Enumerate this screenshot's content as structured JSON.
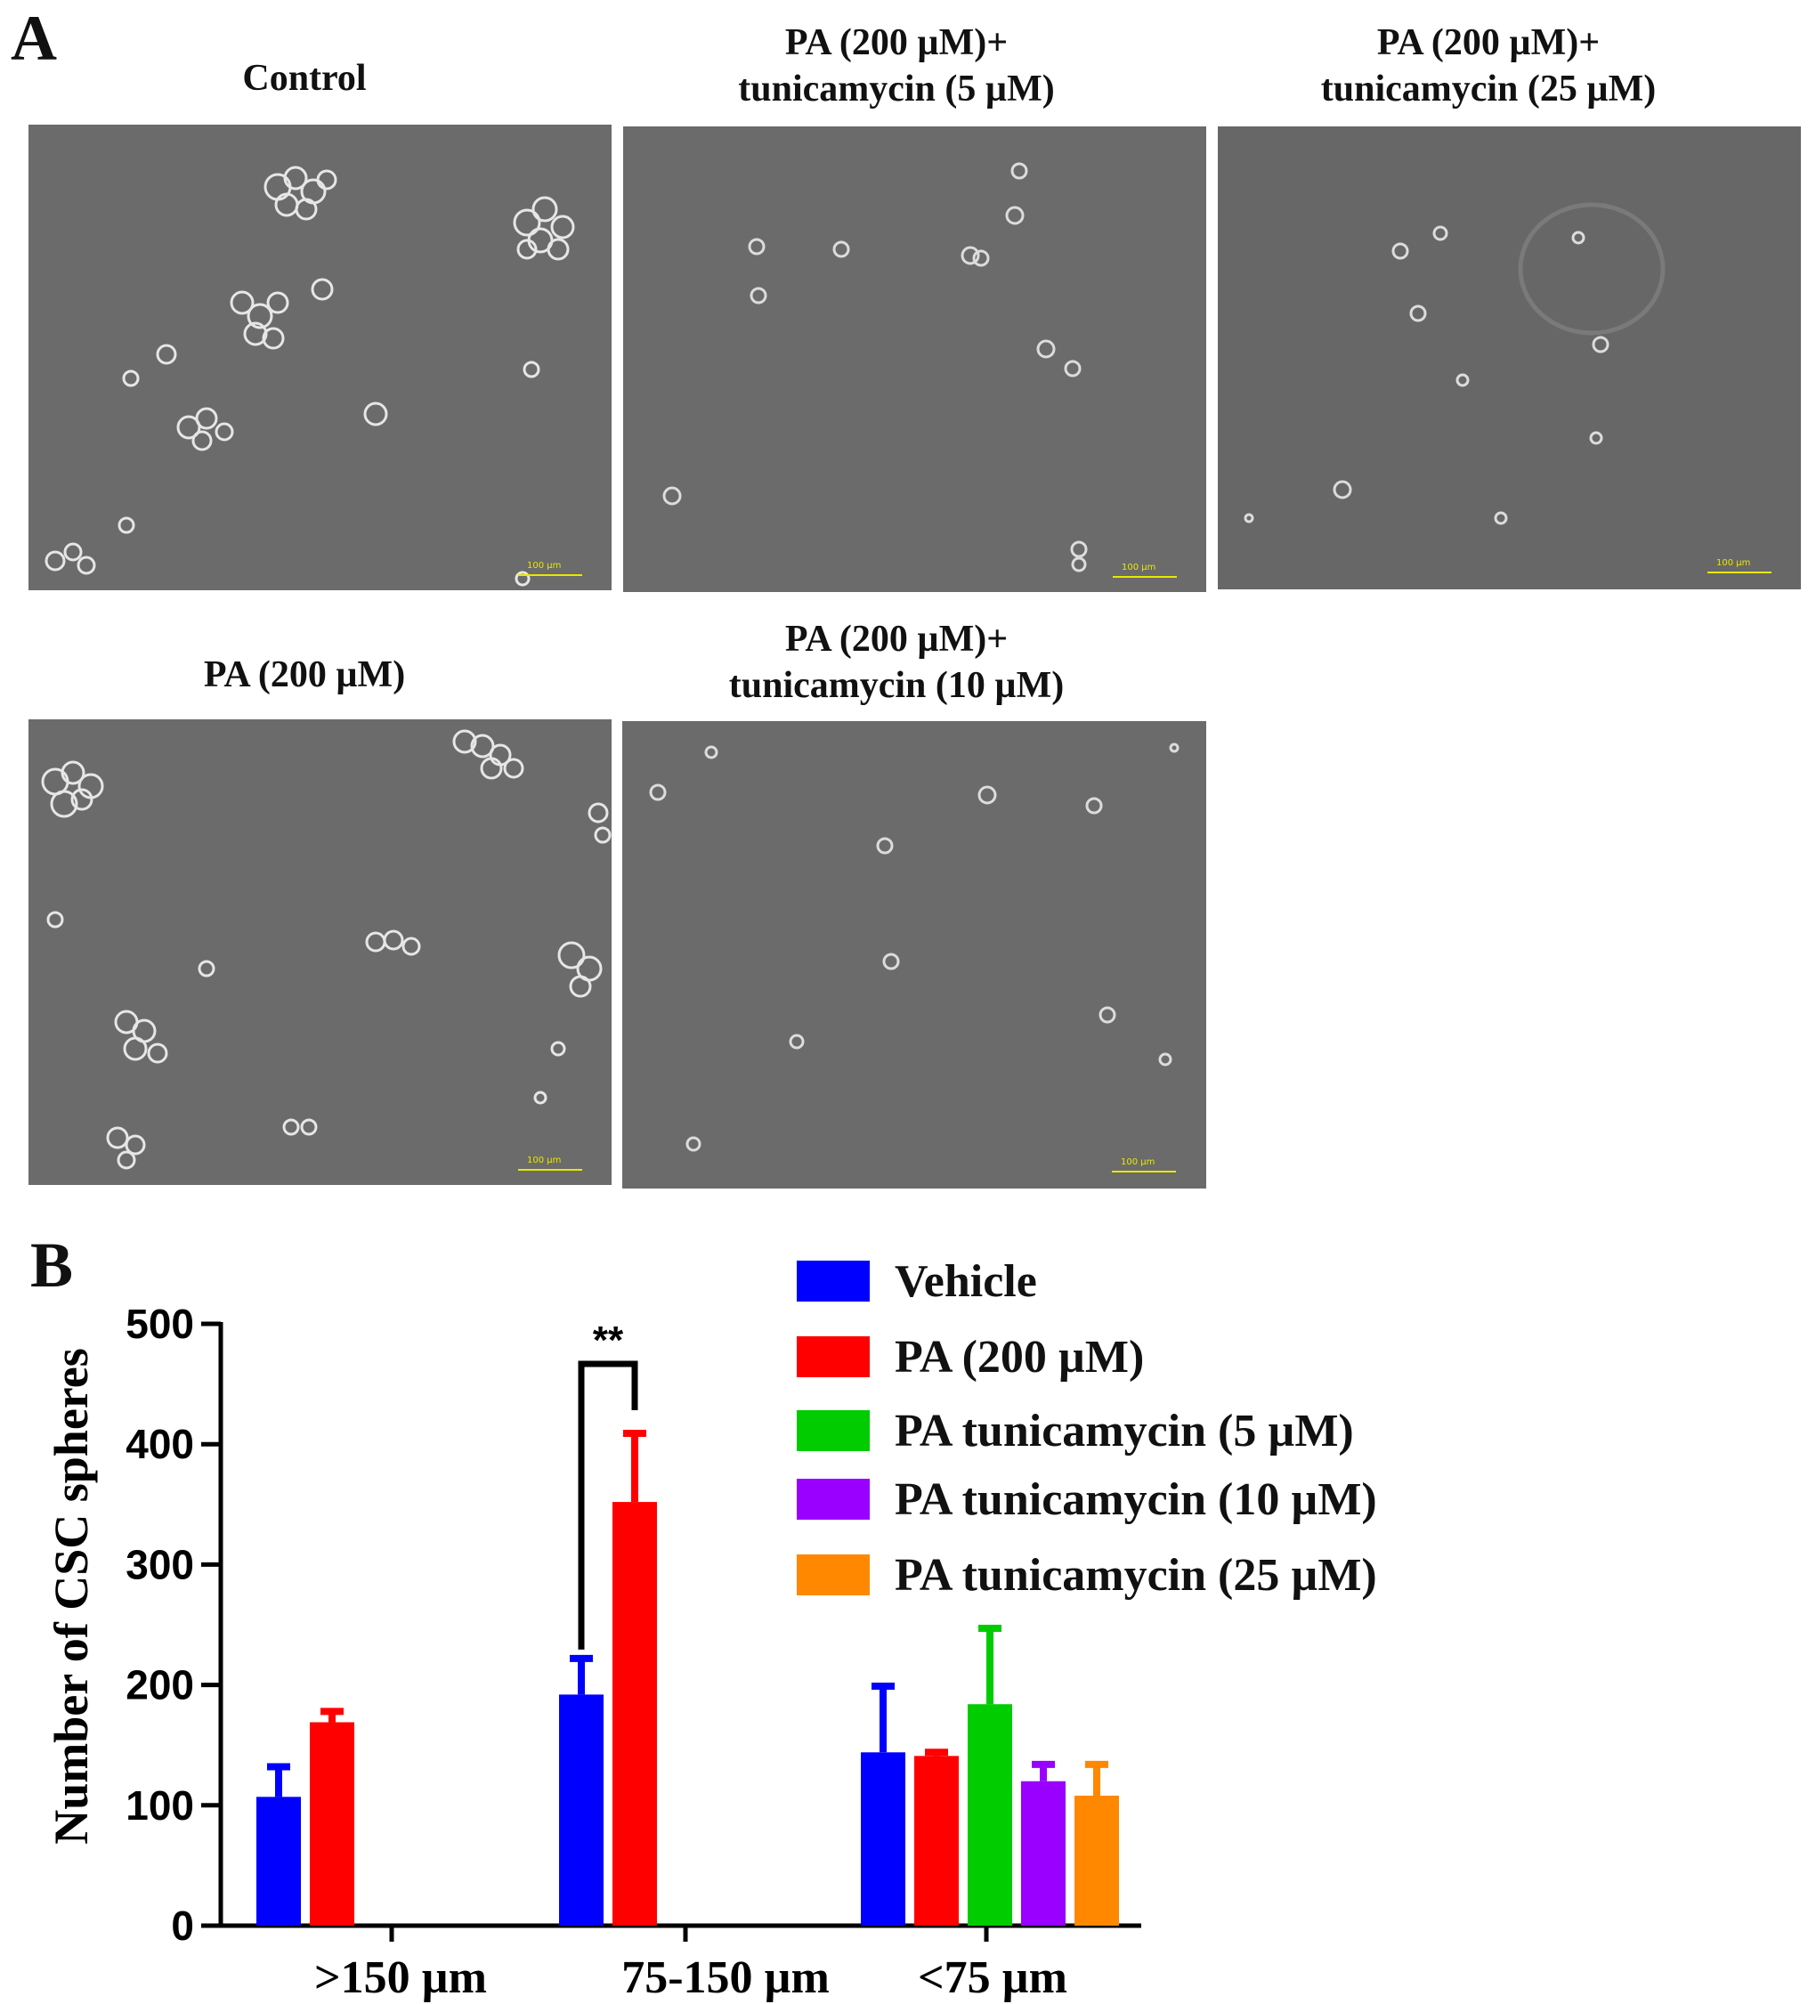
{
  "panel_a": {
    "letter": "A",
    "images": [
      {
        "title_lines": [
          "Control"
        ],
        "scale_label": "100 µm"
      },
      {
        "title_lines": [
          "PA (200 µM)+",
          "tunicamycin (5 µM)"
        ],
        "scale_label": "100 µm"
      },
      {
        "title_lines": [
          "PA (200 µM)+",
          "tunicamycin (25 µM)"
        ],
        "scale_label": "100 µm"
      },
      {
        "title_lines": [
          "PA (200 µM)"
        ],
        "scale_label": "100 µm"
      },
      {
        "title_lines": [
          "PA (200 µM)+",
          "tunicamycin (10 µM)"
        ],
        "scale_label": "100 µm"
      }
    ]
  },
  "panel_b": {
    "letter": "B",
    "significance_label": "**"
  },
  "chart_data": {
    "type": "bar",
    "title": "",
    "xlabel": "",
    "ylabel": "Number of CSC spheres",
    "ylim": [
      0,
      500
    ],
    "yticks": [
      0,
      100,
      200,
      300,
      400,
      500
    ],
    "categories": [
      ">150 µm",
      "75-150 µm",
      "<75 µm"
    ],
    "series": [
      {
        "name": "Vehicle",
        "color": "#0000ff",
        "values": [
          107,
          192,
          144
        ],
        "errors": [
          25,
          30,
          55
        ]
      },
      {
        "name": "PA (200 µM)",
        "color": "#ff0000",
        "values": [
          169,
          352,
          141
        ],
        "errors": [
          9,
          57,
          3
        ]
      },
      {
        "name": "PA tunicamycin (5 µM)",
        "color": "#00cc00",
        "values": [
          null,
          null,
          184
        ],
        "errors": [
          null,
          null,
          63
        ]
      },
      {
        "name": "PA tunicamycin (10 µM)",
        "color": "#9900ff",
        "values": [
          null,
          null,
          120
        ],
        "errors": [
          null,
          null,
          14
        ]
      },
      {
        "name": "PA tunicamycin (25 µM)",
        "color": "#ff8800",
        "values": [
          null,
          null,
          108
        ],
        "errors": [
          null,
          null,
          26
        ]
      }
    ],
    "legend_position": "top-right",
    "grid": false
  }
}
